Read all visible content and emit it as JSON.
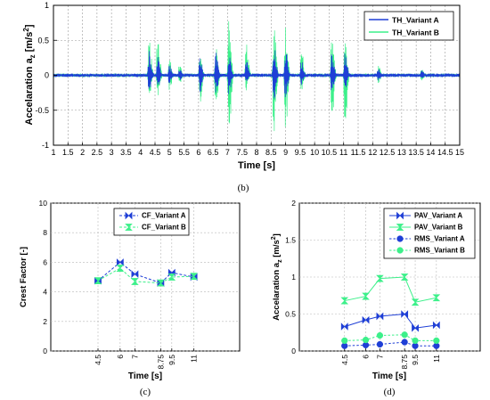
{
  "chart_data": [
    {
      "type": "line",
      "ylabel": "Accelaration a",
      "ylabel_sub": "z",
      "ylabel_unit": " [m/s",
      "ylabel_unit_sup": "2",
      "ylabel_unit_end": "]",
      "xlabel": "Time [s]",
      "xlim": [
        1,
        15
      ],
      "ylim": [
        -1,
        1
      ],
      "x_ticks": [
        "1",
        "1.5",
        "2",
        "2.5",
        "3",
        "3.5",
        "4",
        "4.5",
        "5",
        "5.5",
        "6",
        "6.5",
        "7",
        "7.5",
        "8",
        "8.5",
        "9",
        "9.5",
        "10",
        "10.5",
        "11",
        "11.5",
        "12",
        "12.5",
        "13",
        "13.5",
        "14",
        "14.5",
        "15"
      ],
      "y_ticks": [
        "-1",
        "-0.5",
        "0",
        "0.5",
        "1"
      ],
      "grid": true,
      "legend_position": "top-right",
      "series": [
        {
          "name": "TH_Variant A",
          "color": "#1f3fd6",
          "bursts": [
            {
              "t": 4.3,
              "up": 0.36,
              "down": -0.24
            },
            {
              "t": 4.6,
              "up": 0.28,
              "down": -0.2
            },
            {
              "t": 5.0,
              "up": 0.16,
              "down": -0.12
            },
            {
              "t": 5.35,
              "up": 0.1,
              "down": -0.08
            },
            {
              "t": 6.05,
              "up": 0.28,
              "down": -0.24
            },
            {
              "t": 6.6,
              "up": 0.33,
              "down": -0.28
            },
            {
              "t": 7.05,
              "up": 0.38,
              "down": -0.3
            },
            {
              "t": 7.65,
              "up": 0.24,
              "down": -0.14
            },
            {
              "t": 8.6,
              "up": 0.46,
              "down": -0.38
            },
            {
              "t": 9.0,
              "up": 0.38,
              "down": -0.34
            },
            {
              "t": 9.55,
              "up": 0.24,
              "down": -0.14
            },
            {
              "t": 10.6,
              "up": 0.32,
              "down": -0.26
            },
            {
              "t": 11.05,
              "up": 0.32,
              "down": -0.22
            },
            {
              "t": 12.2,
              "up": 0.1,
              "down": -0.08
            },
            {
              "t": 13.7,
              "up": 0.08,
              "down": -0.06
            }
          ]
        },
        {
          "name": "TH_Variant B",
          "color": "#3cf08a",
          "bursts": [
            {
              "t": 4.3,
              "up": 0.52,
              "down": -0.38
            },
            {
              "t": 4.6,
              "up": 0.6,
              "down": -0.4
            },
            {
              "t": 5.0,
              "up": 0.24,
              "down": -0.22
            },
            {
              "t": 5.35,
              "up": 0.14,
              "down": -0.12
            },
            {
              "t": 6.05,
              "up": 0.36,
              "down": -0.4
            },
            {
              "t": 6.6,
              "up": 0.42,
              "down": -0.6
            },
            {
              "t": 7.05,
              "up": 0.8,
              "down": -0.88
            },
            {
              "t": 7.65,
              "up": 0.48,
              "down": -0.22
            },
            {
              "t": 8.6,
              "up": 0.82,
              "down": -0.9
            },
            {
              "t": 9.0,
              "up": 0.72,
              "down": -0.86
            },
            {
              "t": 9.55,
              "up": 0.38,
              "down": -0.24
            },
            {
              "t": 10.6,
              "up": 0.6,
              "down": -0.66
            },
            {
              "t": 11.05,
              "up": 0.52,
              "down": -0.86
            },
            {
              "t": 12.2,
              "up": 0.14,
              "down": -0.12
            },
            {
              "t": 13.7,
              "up": 0.12,
              "down": -0.1
            }
          ]
        }
      ]
    },
    {
      "type": "line",
      "ylabel": "Crest Factor [-]",
      "xlabel": "Time [s]",
      "ylim": [
        0,
        10
      ],
      "y_ticks": [
        "0",
        "2",
        "4",
        "6",
        "8",
        "10"
      ],
      "x": [
        4.5,
        6,
        7,
        8.75,
        9.5,
        11
      ],
      "x_ticks": [
        "4.5",
        "6",
        "7",
        "8.75",
        "9.5",
        "11"
      ],
      "grid": true,
      "legend_position": "top-right",
      "series": [
        {
          "name": "CF_Variant A",
          "color": "#1f3fd6",
          "values": [
            4.75,
            6.0,
            5.2,
            4.6,
            5.3,
            5.0
          ]
        },
        {
          "name": "CF_Variant B",
          "color": "#3cf08a",
          "values": [
            4.75,
            5.6,
            4.7,
            4.6,
            5.0,
            5.05
          ]
        }
      ]
    },
    {
      "type": "line",
      "ylabel": "Accelaration a",
      "ylabel_sub": "z",
      "ylabel_unit": " [m/s",
      "ylabel_unit_sup": "2",
      "ylabel_unit_end": "]",
      "xlabel": "Time [s]",
      "ylim": [
        0,
        2
      ],
      "y_ticks": [
        "0",
        "0.5",
        "1",
        "1.5",
        "2"
      ],
      "x": [
        4.5,
        6,
        7,
        8.75,
        9.5,
        11
      ],
      "x_ticks": [
        "4.5",
        "6",
        "7",
        "8.75",
        "9.5",
        "11"
      ],
      "grid": true,
      "legend_position": "top-right",
      "series": [
        {
          "name": "PAV_Variant A",
          "color": "#1f3fd6",
          "values": [
            0.33,
            0.42,
            0.47,
            0.5,
            0.31,
            0.35
          ]
        },
        {
          "name": "PAV_Variant B",
          "color": "#3cf08a",
          "values": [
            0.68,
            0.74,
            0.98,
            1.0,
            0.66,
            0.72
          ]
        },
        {
          "name": "RMS_Variant A",
          "color": "#1f3fd6",
          "values": [
            0.07,
            0.08,
            0.09,
            0.12,
            0.07,
            0.07
          ]
        },
        {
          "name": "RMS_Variant B",
          "color": "#3cf08a",
          "values": [
            0.14,
            0.15,
            0.21,
            0.22,
            0.14,
            0.14
          ]
        }
      ]
    }
  ],
  "captions": {
    "b": "(b)",
    "c": "(c)",
    "d": "(d)"
  }
}
